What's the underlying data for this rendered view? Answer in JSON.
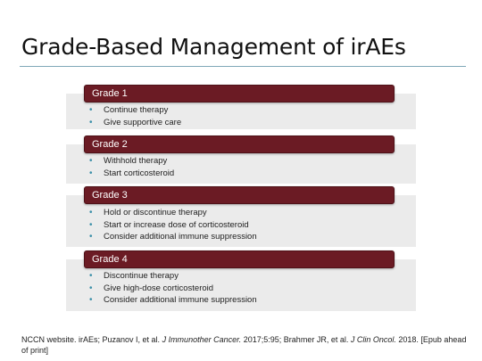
{
  "slide": {
    "title": "Grade-Based Management of irAEs"
  },
  "grades": [
    {
      "label": "Grade 1",
      "items": [
        "Continue therapy",
        "Give supportive care"
      ]
    },
    {
      "label": "Grade 2",
      "items": [
        "Withhold therapy",
        "Start corticosteroid"
      ]
    },
    {
      "label": "Grade 3",
      "items": [
        "Hold or discontinue therapy",
        "Start or increase dose of corticosteroid",
        "Consider additional immune suppression"
      ]
    },
    {
      "label": "Grade 4",
      "items": [
        "Discontinue therapy",
        "Give high-dose corticosteroid",
        "Consider additional immune suppression"
      ]
    }
  ],
  "footnote": {
    "part1": "NCCN website. irAEs; Puzanov I, et al. ",
    "journal1": "J Immunother Cancer.",
    "part2": " 2017;5:95; Brahmer JR, et al. ",
    "journal2": "J Clin Oncol.",
    "part3": " 2018. [Epub ahead of print]"
  }
}
